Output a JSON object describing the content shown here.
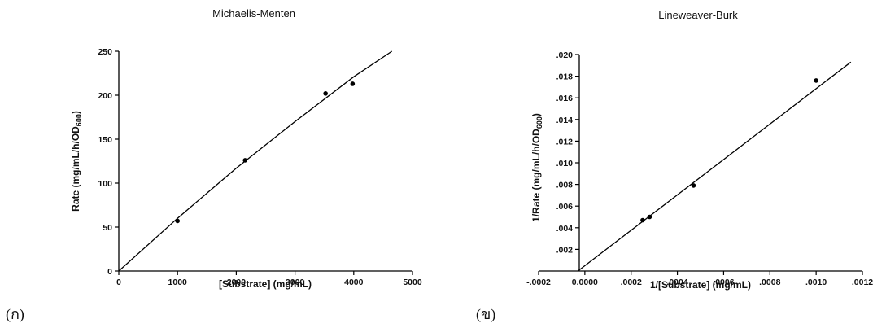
{
  "chart_data": [
    {
      "type": "scatter",
      "title": "Michaelis-Menten",
      "xlabel": "[Substrate] (mg/mL)",
      "ylabel": "Rate (mg/mL/h/OD",
      "ylabel_sub": "600",
      "ylabel_end": ")",
      "xlim": [
        0,
        5000
      ],
      "ylim": [
        0,
        250
      ],
      "x_ticks": [
        "0",
        "1000",
        "2000",
        "3000",
        "4000",
        "5000"
      ],
      "y_ticks": [
        "0",
        "50",
        "100",
        "150",
        "200",
        "250"
      ],
      "points": {
        "x": [
          1000,
          2150,
          3520,
          3980
        ],
        "y": [
          57,
          126,
          202,
          213
        ]
      },
      "fit": {
        "x": [
          0,
          1000,
          2000,
          3000,
          4000,
          4650
        ],
        "y": [
          0,
          60,
          117,
          170,
          221,
          250
        ]
      },
      "panel_label": "(ก)"
    },
    {
      "type": "scatter",
      "title": "Lineweaver-Burk",
      "xlabel": "1/[Substrate] (mg/mL)",
      "ylabel": "1/Rate (mg/mL/h/OD",
      "ylabel_sub": "600",
      "ylabel_end": ")",
      "xlim": [
        -0.0002,
        0.0012
      ],
      "ylim": [
        0,
        0.02
      ],
      "x_ticks": [
        "-.0002",
        "0.0000",
        ".0002",
        ".0004",
        ".0006",
        ".0008",
        ".0010",
        ".0012"
      ],
      "y_ticks": [
        ".002",
        ".004",
        ".006",
        ".008",
        ".010",
        ".012",
        ".014",
        ".016",
        ".018",
        ".020"
      ],
      "y_tick_values": [
        0.002,
        0.004,
        0.006,
        0.008,
        0.01,
        0.012,
        0.014,
        0.016,
        0.018,
        0.02
      ],
      "points": {
        "x": [
          0.00025,
          0.00028,
          0.00047,
          0.001
        ],
        "y": [
          0.0047,
          0.005,
          0.0079,
          0.0176
        ]
      },
      "fit": {
        "x": [
          -3e-05,
          0.00115
        ],
        "y": [
          0,
          0.0193
        ]
      },
      "panel_label": "(ข)"
    }
  ]
}
